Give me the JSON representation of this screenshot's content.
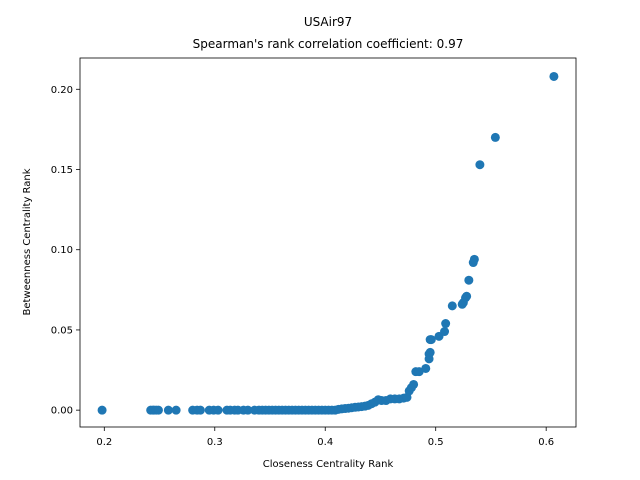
{
  "chart_data": {
    "type": "scatter",
    "title": "USAir97",
    "subtitle": "Spearman's rank correlation coefficient: 0.97",
    "xlabel": "Closeness Centrality Rank",
    "ylabel": "Betweenness Centrality Rank",
    "xlim": [
      0.178,
      0.627
    ],
    "ylim": [
      -0.0105,
      0.2195
    ],
    "xticks": [
      0.2,
      0.3,
      0.4,
      0.5,
      0.6
    ],
    "xtick_labels": [
      "0.2",
      "0.3",
      "0.4",
      "0.5",
      "0.6"
    ],
    "yticks": [
      0.0,
      0.05,
      0.1,
      0.15,
      0.2
    ],
    "ytick_labels": [
      "0.00",
      "0.05",
      "0.10",
      "0.15",
      "0.20"
    ],
    "grid": false,
    "marker_color": "#1f77b4",
    "x": [
      0.198,
      0.242,
      0.244,
      0.245,
      0.247,
      0.249,
      0.258,
      0.265,
      0.28,
      0.284,
      0.287,
      0.295,
      0.299,
      0.303,
      0.311,
      0.314,
      0.318,
      0.321,
      0.326,
      0.33,
      0.336,
      0.34,
      0.343,
      0.346,
      0.349,
      0.352,
      0.355,
      0.358,
      0.361,
      0.364,
      0.367,
      0.37,
      0.373,
      0.376,
      0.379,
      0.382,
      0.385,
      0.388,
      0.391,
      0.394,
      0.397,
      0.4,
      0.403,
      0.406,
      0.409,
      0.412,
      0.415,
      0.418,
      0.421,
      0.424,
      0.427,
      0.43,
      0.433,
      0.436,
      0.439,
      0.442,
      0.445,
      0.448,
      0.451,
      0.455,
      0.459,
      0.463,
      0.467,
      0.471,
      0.474,
      0.476,
      0.478,
      0.48,
      0.482,
      0.485,
      0.491,
      0.494,
      0.494,
      0.495,
      0.495,
      0.496,
      0.503,
      0.508,
      0.509,
      0.515,
      0.524,
      0.525,
      0.527,
      0.528,
      0.53,
      0.534,
      0.535,
      0.54,
      0.554,
      0.607
    ],
    "y": [
      0.0,
      0.0,
      0.0,
      0.0,
      0.0,
      0.0,
      0.0,
      0.0,
      0.0,
      0.0,
      0.0,
      0.0,
      0.0,
      0.0,
      0.0,
      0.0,
      0.0,
      0.0,
      0.0,
      0.0,
      0.0,
      0.0,
      0.0,
      0.0,
      0.0,
      0.0,
      0.0,
      0.0,
      0.0,
      0.0,
      0.0,
      0.0,
      0.0,
      0.0,
      0.0,
      0.0,
      0.0,
      0.0,
      0.0,
      0.0,
      0.0,
      0.0,
      0.0,
      0.0,
      0.0,
      0.0005,
      0.0008,
      0.001,
      0.0012,
      0.0015,
      0.0018,
      0.002,
      0.0022,
      0.0025,
      0.003,
      0.004,
      0.005,
      0.0065,
      0.006,
      0.006,
      0.007,
      0.007,
      0.007,
      0.0075,
      0.008,
      0.012,
      0.014,
      0.016,
      0.024,
      0.024,
      0.026,
      0.032,
      0.035,
      0.036,
      0.044,
      0.044,
      0.046,
      0.049,
      0.054,
      0.065,
      0.066,
      0.067,
      0.07,
      0.071,
      0.081,
      0.092,
      0.094,
      0.153,
      0.17,
      0.208
    ]
  }
}
